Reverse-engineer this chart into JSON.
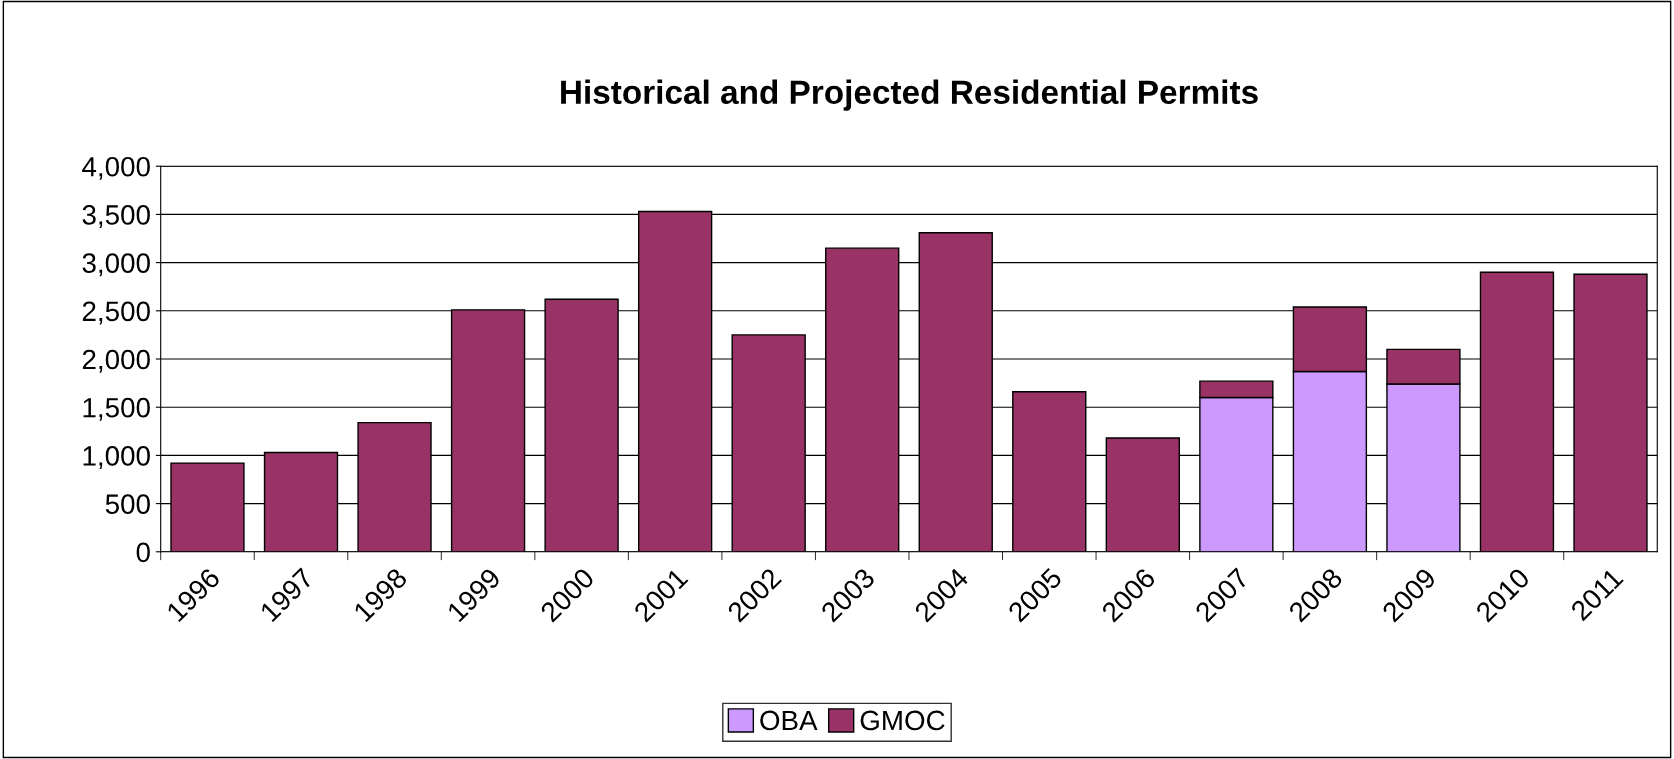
{
  "chart_data": {
    "type": "bar",
    "title": "Historical and Projected Residential Permits",
    "categories": [
      "1996",
      "1997",
      "1998",
      "1999",
      "2000",
      "2001",
      "2002",
      "2003",
      "2004",
      "2005",
      "2006",
      "2007",
      "2008",
      "2009",
      "2010",
      "2011"
    ],
    "stacked": true,
    "series": [
      {
        "name": "OBA",
        "color": "#cc99ff",
        "values": [
          null,
          null,
          null,
          null,
          null,
          null,
          null,
          null,
          null,
          null,
          null,
          1600,
          1870,
          1740,
          null,
          null
        ]
      },
      {
        "name": "GMOC",
        "color": "#993366",
        "values": [
          920,
          1030,
          1340,
          2510,
          2620,
          3530,
          2250,
          3150,
          3310,
          1660,
          1180,
          170,
          670,
          360,
          2900,
          2880
        ]
      }
    ],
    "ylim": [
      0,
      4000
    ],
    "yticks": [
      {
        "value": 0,
        "label": "0"
      },
      {
        "value": 500,
        "label": "500"
      },
      {
        "value": 1000,
        "label": "1,000"
      },
      {
        "value": 1500,
        "label": "1,500"
      },
      {
        "value": 2000,
        "label": "2,000"
      },
      {
        "value": 2500,
        "label": "2,500"
      },
      {
        "value": 3000,
        "label": "3,000"
      },
      {
        "value": 3500,
        "label": "3,500"
      },
      {
        "value": 4000,
        "label": "4,000"
      }
    ],
    "grid": "y",
    "legend": "bottom"
  }
}
